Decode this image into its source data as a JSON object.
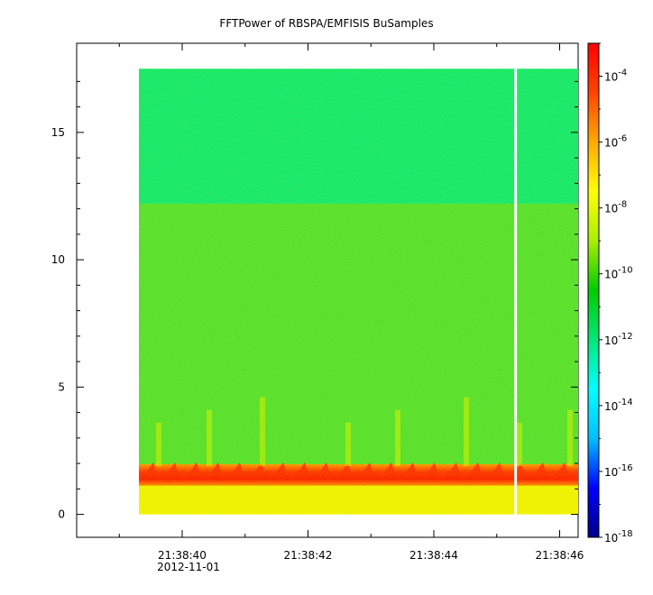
{
  "chart_data": {
    "type": "heatmap",
    "title": "FFTPower of RBSPA/EMFISIS  BuSamples",
    "xlabel": "",
    "ylabel": "",
    "x_ticks": [
      "21:38:40",
      "21:38:42",
      "21:38:44",
      "21:38:46"
    ],
    "x_date_label": "2012-11-01",
    "y_ticks": [
      0,
      5,
      10,
      15
    ],
    "ylim": [
      -0.9,
      18.5
    ],
    "colorbar": {
      "scale": "log",
      "range": [
        "1e-18",
        "1e-3"
      ],
      "ticks": [
        {
          "mantissa": "10",
          "exp": "-4"
        },
        {
          "mantissa": "10",
          "exp": "-6"
        },
        {
          "mantissa": "10",
          "exp": "-8"
        },
        {
          "mantissa": "10",
          "exp": "-10"
        },
        {
          "mantissa": "10",
          "exp": "-12"
        },
        {
          "mantissa": "10",
          "exp": "-14"
        },
        {
          "mantissa": "10",
          "exp": "-16"
        },
        {
          "mantissa": "10",
          "exp": "-18"
        }
      ],
      "colors": [
        "#00008b",
        "#0000ff",
        "#00bfff",
        "#00ffff",
        "#00e87a",
        "#00cc00",
        "#aaee00",
        "#ffff00",
        "#ffaa00",
        "#ff4400",
        "#ff0000"
      ]
    },
    "bands": [
      {
        "y_range": [
          0,
          1.2
        ],
        "level": "1e-8",
        "color": "#f2f200"
      },
      {
        "y_range": [
          1.2,
          1.9
        ],
        "level": "1e-6",
        "color": "#ff4a00"
      },
      {
        "y_range": [
          1.9,
          12.2
        ],
        "level": "1e-10",
        "color": "#5ae02c"
      },
      {
        "y_range": [
          12.2,
          17.5
        ],
        "level": "1e-11",
        "color": "#19e86a"
      }
    ],
    "data_gap_time": "21:38:45.3",
    "grid": false
  }
}
